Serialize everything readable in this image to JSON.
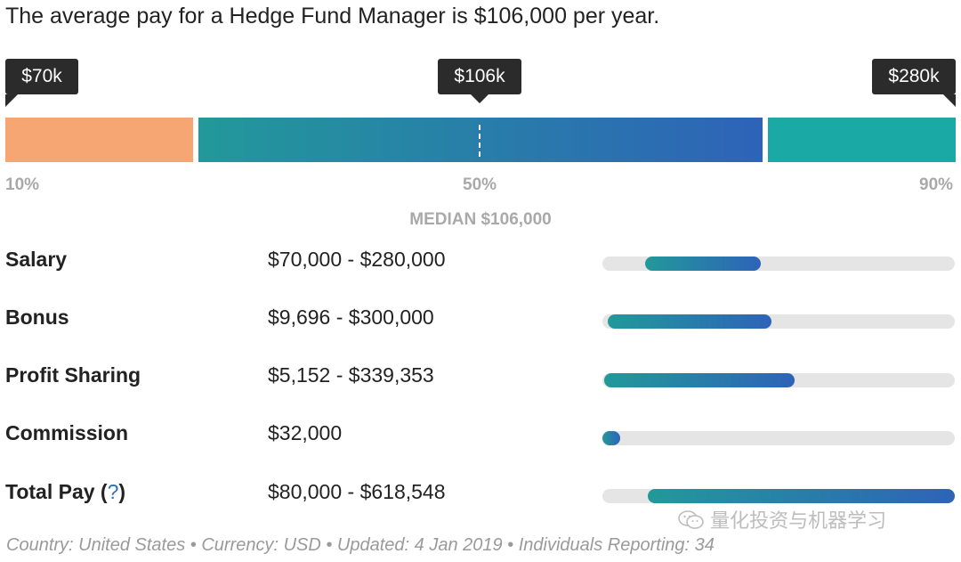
{
  "headline": "The average pay for a Hedge Fund Manager is $106,000 per year.",
  "chart_data": {
    "type": "bar",
    "title": "The average pay for a Hedge Fund Manager is $106,000 per year.",
    "percentile_bar": {
      "range": [
        0,
        100
      ],
      "segments": [
        {
          "from": 0,
          "to": 20,
          "color": "#f5a673"
        },
        {
          "from": 20,
          "to": 80,
          "color_start": "#22999a",
          "color_end": "#2e63b8"
        },
        {
          "from": 80,
          "to": 100,
          "color": "#1aa9a4"
        }
      ],
      "callouts": [
        {
          "label": "$70k",
          "percentile": 10
        },
        {
          "label": "$106k",
          "percentile": 50
        },
        {
          "label": "$280k",
          "percentile": 90
        }
      ],
      "percentile_labels": [
        "10%",
        "50%",
        "90%"
      ],
      "median_percentile": 50,
      "median_label": "MEDIAN $106,000"
    },
    "components": [
      {
        "name": "Salary",
        "range_text": "$70,000 - $280,000",
        "bar_start": 0.12,
        "bar_end": 0.45
      },
      {
        "name": "Bonus",
        "range_text": "$9,696 - $300,000",
        "bar_start": 0.015,
        "bar_end": 0.48
      },
      {
        "name": "Profit Sharing",
        "range_text": "$5,152 - $339,353",
        "bar_start": 0.005,
        "bar_end": 0.545
      },
      {
        "name": "Commission",
        "range_text": "$32,000",
        "bar_start": 0.0,
        "bar_end": 0.05
      },
      {
        "name": "Total Pay",
        "help": "?",
        "range_text": "$80,000 - $618,548",
        "bar_start": 0.13,
        "bar_end": 1.0
      }
    ]
  },
  "footer": "Country: United States • Currency: USD • Updated: 4 Jan 2019 • Individuals Reporting: 34",
  "watermark": "量化投资与机器学习"
}
